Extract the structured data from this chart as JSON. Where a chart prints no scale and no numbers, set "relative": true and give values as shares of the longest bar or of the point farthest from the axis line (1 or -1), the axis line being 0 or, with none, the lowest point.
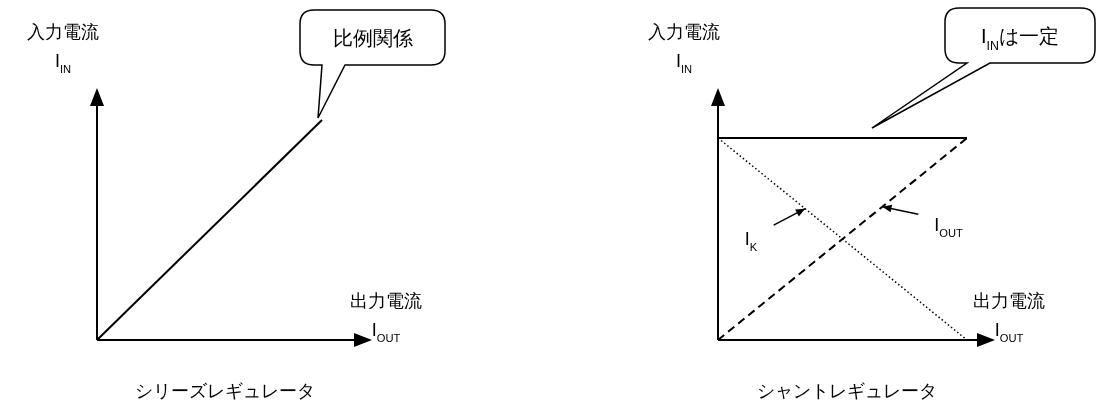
{
  "chart_data": [
    {
      "type": "line",
      "relative": true,
      "title": "シリーズレギュレータ",
      "xlabel": "出力電流\nI$_{OUT}$",
      "ylabel": "入力電流\nI$_{IN}$",
      "categories": [
        null,
        null
      ],
      "series": [
        {
          "color": "#000000",
          "values": [
            0,
            1
          ],
          "line_style": "solid"
        }
      ],
      "annotations": [
        "比例関係"
      ]
    },
    {
      "type": "line",
      "relative": true,
      "title": "シャントレギュレータ",
      "xlabel": "出力電流\nI$_{OUT}$",
      "ylabel": "入力電流\nI$_{IN}$",
      "categories": [
        null,
        null
      ],
      "series": [
        {
          "color": "#000000",
          "values": [
            1,
            1
          ],
          "line_style": "solid"
        },
        {
          "name": "I$_{K}$",
          "color": "#000000",
          "values": [
            1,
            0
          ],
          "line_style": "dotted"
        },
        {
          "name": "I$_{OUT}$",
          "color": "#000000",
          "values": [
            0,
            1
          ],
          "line_style": "dashed"
        }
      ],
      "annotations": [
        "I$_{IN}$は一定"
      ]
    }
  ]
}
